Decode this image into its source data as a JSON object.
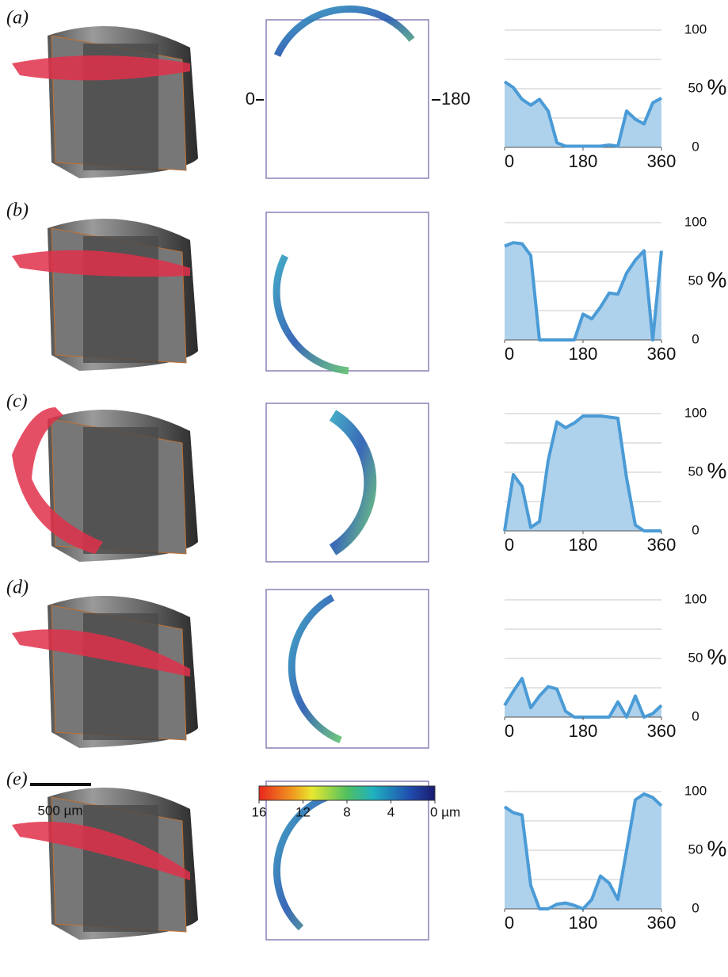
{
  "chart_data": [
    {
      "type": "area",
      "panel": "(a)",
      "x": [
        0,
        20,
        40,
        60,
        80,
        100,
        120,
        140,
        160,
        180,
        200,
        220,
        240,
        260,
        280,
        300,
        320,
        340,
        360
      ],
      "values": [
        56,
        51,
        41,
        36,
        41,
        31,
        4,
        1,
        1,
        1,
        1,
        1,
        2,
        1,
        31,
        24,
        20,
        38,
        42
      ],
      "color": "#4a9bd6",
      "fill": "#aed1ec",
      "xlim": [
        0,
        360
      ],
      "xticks": [
        0,
        180,
        360
      ],
      "ylim": [
        0,
        100
      ],
      "yticks": [
        0,
        50,
        100
      ],
      "grid_yticks": [
        25,
        75
      ],
      "ylabel": "%"
    },
    {
      "type": "area",
      "panel": "(b)",
      "x": [
        0,
        20,
        40,
        60,
        80,
        100,
        120,
        140,
        160,
        180,
        200,
        220,
        240,
        260,
        280,
        300,
        320,
        340,
        360
      ],
      "values": [
        80,
        83,
        82,
        72,
        0,
        0,
        0,
        0,
        0,
        22,
        18,
        28,
        40,
        39,
        57,
        68,
        76,
        0,
        76
      ],
      "color": "#4a9bd6",
      "fill": "#aed1ec",
      "xlim": [
        0,
        360
      ],
      "xticks": [
        0,
        180,
        360
      ],
      "ylim": [
        0,
        100
      ],
      "yticks": [
        0,
        50,
        100
      ],
      "grid_yticks": [
        25,
        75
      ],
      "ylabel": "%"
    },
    {
      "type": "area",
      "panel": "(c)",
      "x": [
        0,
        20,
        40,
        60,
        80,
        100,
        120,
        140,
        160,
        180,
        200,
        220,
        240,
        260,
        280,
        300,
        320,
        340,
        360
      ],
      "values": [
        0,
        48,
        38,
        3,
        8,
        60,
        93,
        88,
        92,
        98,
        98,
        98,
        97,
        96,
        45,
        5,
        0,
        0,
        0
      ],
      "color": "#4a9bd6",
      "fill": "#aed1ec",
      "xlim": [
        0,
        360
      ],
      "xticks": [
        0,
        180,
        360
      ],
      "ylim": [
        0,
        100
      ],
      "yticks": [
        0,
        50,
        100
      ],
      "grid_yticks": [
        25,
        75
      ],
      "ylabel": "%"
    },
    {
      "type": "area",
      "panel": "(d)",
      "x": [
        0,
        20,
        40,
        60,
        80,
        100,
        120,
        140,
        160,
        180,
        200,
        220,
        240,
        260,
        280,
        300,
        320,
        340,
        360
      ],
      "values": [
        10,
        22,
        33,
        8,
        18,
        26,
        24,
        5,
        0,
        0,
        0,
        0,
        0,
        13,
        0,
        18,
        0,
        3,
        10
      ],
      "color": "#4a9bd6",
      "fill": "#aed1ec",
      "xlim": [
        0,
        360
      ],
      "xticks": [
        0,
        180,
        360
      ],
      "ylim": [
        0,
        100
      ],
      "yticks": [
        0,
        50,
        100
      ],
      "grid_yticks": [
        25,
        75
      ],
      "ylabel": "%"
    },
    {
      "type": "area",
      "panel": "(e)",
      "x": [
        0,
        20,
        40,
        60,
        80,
        100,
        120,
        140,
        160,
        180,
        200,
        220,
        240,
        260,
        280,
        300,
        320,
        340,
        360
      ],
      "values": [
        87,
        82,
        80,
        20,
        0,
        0,
        4,
        5,
        3,
        0,
        8,
        28,
        22,
        8,
        50,
        93,
        98,
        95,
        88
      ],
      "color": "#4a9bd6",
      "fill": "#aed1ec",
      "xlim": [
        0,
        360
      ],
      "xticks": [
        0,
        180,
        360
      ],
      "ylim": [
        0,
        100
      ],
      "yticks": [
        0,
        50,
        100
      ],
      "grid_yticks": [
        25,
        75
      ],
      "ylabel": "%"
    }
  ],
  "map_labels": [
    "0",
    "180"
  ],
  "scale_bar": "500 µm",
  "colorbar": {
    "lim": [
      16,
      0
    ],
    "ticks": [
      16,
      12,
      8,
      4,
      {
        "value": 0,
        "label": "0 µm"
      }
    ]
  }
}
